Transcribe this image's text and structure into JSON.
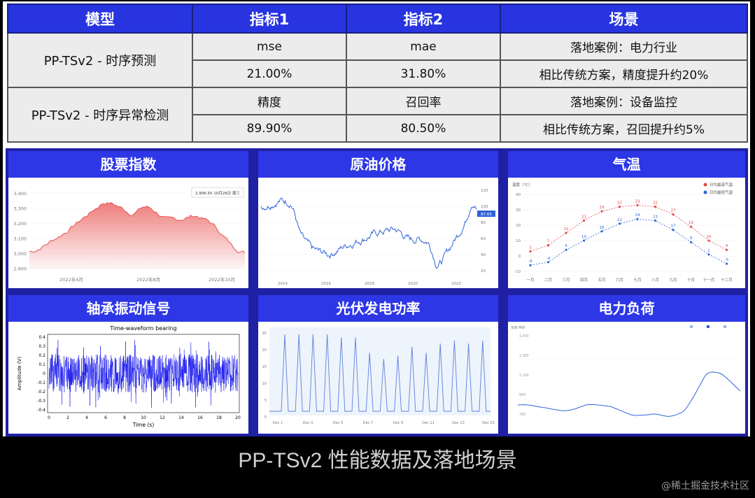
{
  "table": {
    "headers": [
      "模型",
      "指标1",
      "指标2",
      "场景"
    ],
    "groups": [
      {
        "model": "PP-TSv2 - 时序预测",
        "rows": [
          [
            "mse",
            "mae",
            "落地案例：电力行业"
          ],
          [
            "21.00%",
            "31.80%",
            "相比传统方案，精度提升约20%"
          ]
        ]
      },
      {
        "model": "PP-TSv2 - 时序异常检测",
        "rows": [
          [
            "精度",
            "召回率",
            "落地案例：设备监控"
          ],
          [
            "89.90%",
            "80.50%",
            "相比传统方案，召回提升约5%"
          ]
        ]
      }
    ]
  },
  "panels": [
    {
      "title": "股票指数"
    },
    {
      "title": "原油价格"
    },
    {
      "title": "气温"
    },
    {
      "title": "轴承振动信号"
    },
    {
      "title": "光伏发电功率"
    },
    {
      "title": "电力负荷"
    }
  ],
  "colors": {
    "accent": "#2d37e6",
    "header": "#2734e0",
    "cell": "#ececec",
    "stock": "#e8524f",
    "series": "#2f64d8"
  },
  "stock_chart": {
    "tooltip": "2,906.50  10月26日 周三",
    "y_ticks": [
      "3,400",
      "3,300",
      "3,200",
      "3,100",
      "3,000",
      "2,900"
    ],
    "x_ticks": [
      "2022年4月",
      "2022年8月",
      "2022年10月"
    ]
  },
  "oil_chart": {
    "x_ticks": [
      "2014",
      "2016",
      "2018",
      "2020",
      "2022"
    ],
    "y_ticks": [
      "120",
      "100",
      "80",
      "60",
      "40",
      "20"
    ],
    "last_price": "87.65"
  },
  "temp_chart": {
    "unit_label": "温度（°C）",
    "legend": [
      "日均最高气温",
      "日均最低气温"
    ],
    "months": [
      "一月",
      "二月",
      "三月",
      "四月",
      "五月",
      "六月",
      "七月",
      "八月",
      "九月",
      "十月",
      "十一月",
      "十二月"
    ],
    "high": [
      3,
      7,
      15,
      23,
      29,
      32,
      33,
      32,
      27,
      19,
      10,
      4
    ],
    "low": [
      -6,
      -4,
      4,
      10,
      16,
      21,
      24,
      23,
      17,
      9,
      1,
      -5
    ],
    "y_ticks": [
      "40",
      "30",
      "20",
      "10",
      "0",
      "-10"
    ]
  },
  "bearing_chart": {
    "title": "Time-waveform bearing",
    "xlabel": "Time (s)",
    "ylabel": "Amplitude (V)",
    "x_ticks": [
      "0",
      "2",
      "4",
      "6",
      "8",
      "10",
      "12",
      "14",
      "16",
      "18",
      "20"
    ],
    "y_ticks": [
      "0.4",
      "0.3",
      "0.2",
      "0.1",
      "0",
      "-0.1",
      "-0.2",
      "-0.3",
      "-0.4"
    ]
  },
  "solar_chart": {
    "x_ticks": [
      "Dec 1",
      "Dec 3",
      "Dec 5",
      "Dec 7",
      "Dec 9",
      "Dec 11",
      "Dec 13",
      "Dec 15"
    ],
    "y_ticks": [
      "25",
      "20",
      "15",
      "10",
      "5",
      "0"
    ]
  },
  "load_chart": {
    "unit_label": "负荷 MW",
    "y_ticks": [
      "1,500",
      "1,300",
      "1,100",
      "900",
      "700"
    ]
  },
  "caption": "PP-TSv2 性能数据及落地场景",
  "watermark": "@稀土掘金技术社区"
}
